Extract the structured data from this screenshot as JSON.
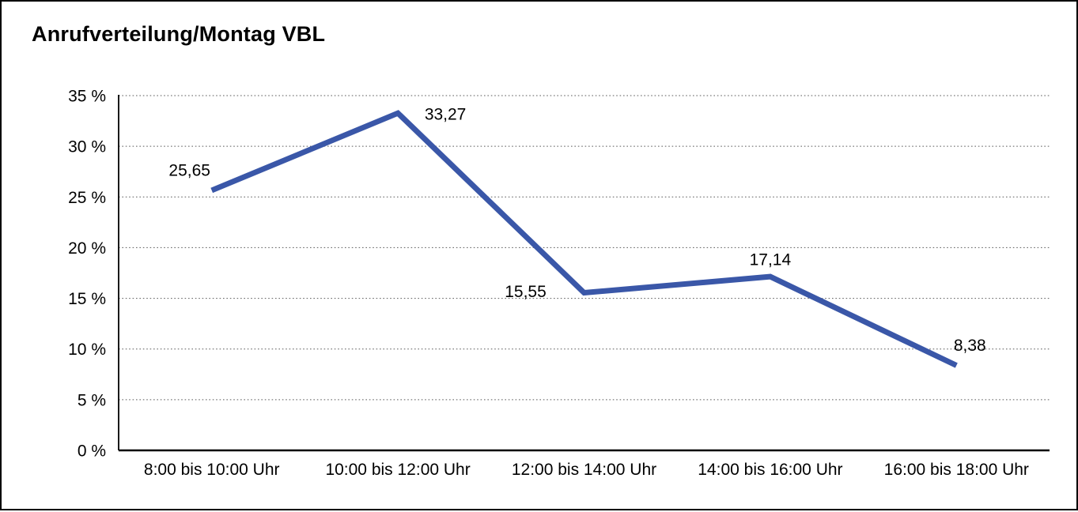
{
  "window": {
    "background": "#ffffff",
    "border_color": "#000000"
  },
  "chart_data": {
    "type": "line",
    "title": "Anrufverteilung/Montag VBL",
    "categories": [
      "8:00 bis 10:00 Uhr",
      "10:00 bis 12:00 Uhr",
      "12:00 bis 14:00 Uhr",
      "14:00 bis 16:00 Uhr",
      "16:00 bis 18:00 Uhr"
    ],
    "values": [
      25.65,
      33.27,
      15.55,
      17.14,
      8.38
    ],
    "point_labels": [
      "25,65",
      "33,27",
      "15,55",
      "17,14",
      "8,38"
    ],
    "y_tick_labels": [
      "35 %",
      "30 %",
      "25 %",
      "20 %",
      "15 %",
      "10 %",
      "5 %",
      "0 %"
    ],
    "ylim": [
      0,
      35
    ],
    "y_step": 5,
    "xlabel": "",
    "ylabel": "",
    "grid": "horizontal-dotted",
    "legend": "none",
    "line_color": "#3A57A8",
    "grid_color": "#5a5a5a",
    "axis_color": "#000000",
    "text_color": "#000000"
  }
}
